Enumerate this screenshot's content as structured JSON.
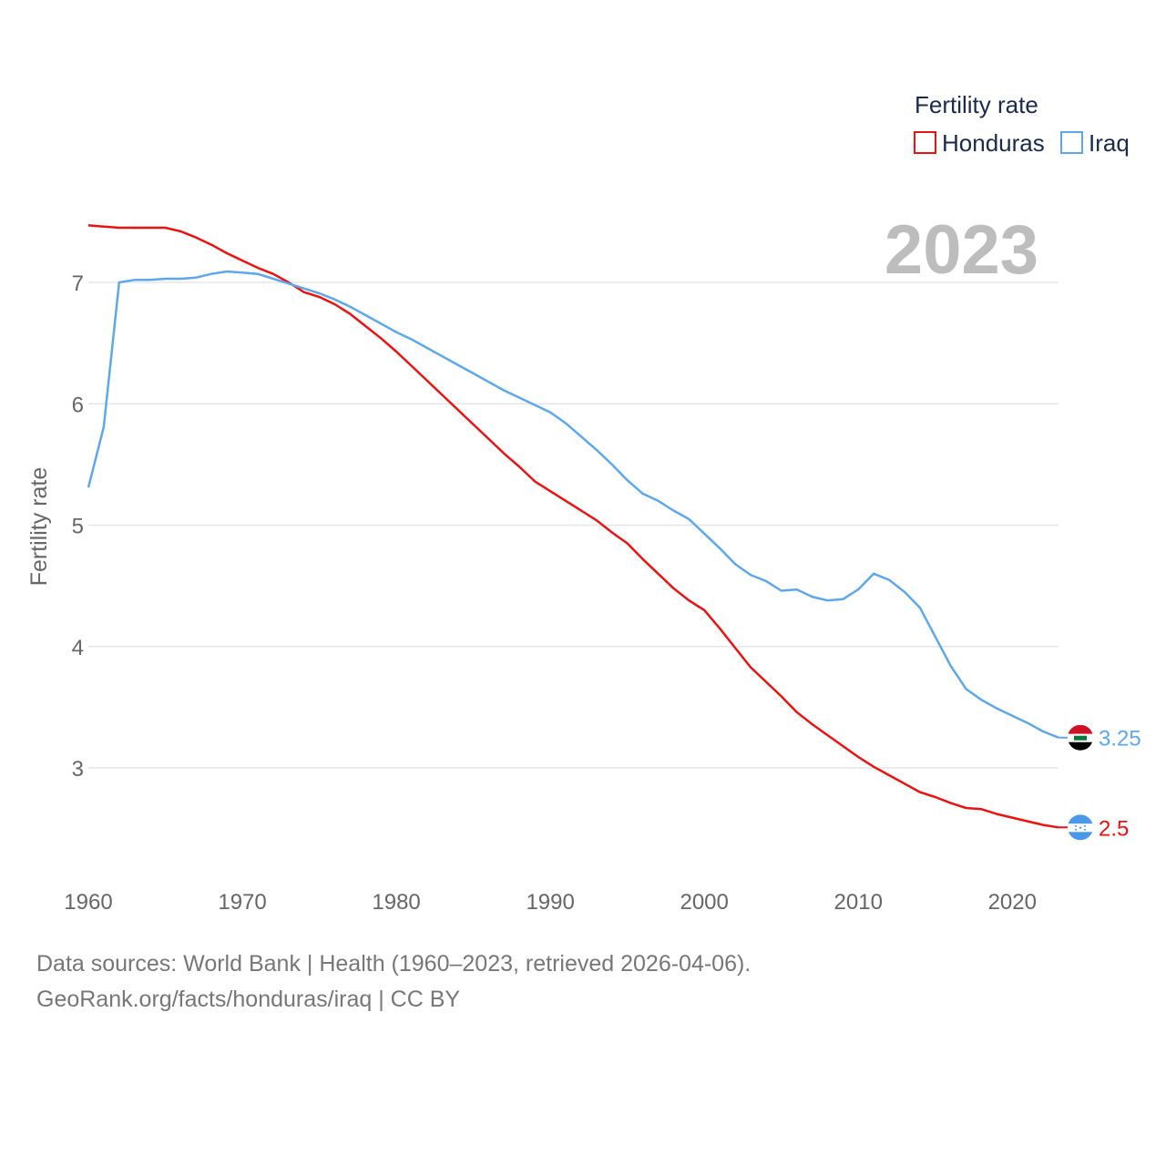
{
  "chart_data": {
    "type": "line",
    "title": "Fertility rate",
    "year_label": "2023",
    "ylabel": "Fertility rate",
    "xlabel": "",
    "xlim": [
      1960,
      2023
    ],
    "ylim": [
      2.2,
      7.5
    ],
    "x_ticks": [
      "1960",
      "1970",
      "1980",
      "1990",
      "2000",
      "2010",
      "2020"
    ],
    "y_ticks": [
      "3",
      "4",
      "5",
      "6",
      "7"
    ],
    "legend": [
      "Honduras",
      "Iraq"
    ],
    "series": [
      {
        "name": "Honduras",
        "color": "#ee1111",
        "end_label": "2.5",
        "flag": "honduras-flag",
        "x": [
          1960,
          1961,
          1962,
          1963,
          1964,
          1965,
          1966,
          1967,
          1968,
          1969,
          1970,
          1971,
          1972,
          1973,
          1974,
          1975,
          1976,
          1977,
          1978,
          1979,
          1980,
          1981,
          1982,
          1983,
          1984,
          1985,
          1986,
          1987,
          1988,
          1989,
          1990,
          1991,
          1992,
          1993,
          1994,
          1995,
          1996,
          1997,
          1998,
          1999,
          2000,
          2001,
          2002,
          2003,
          2004,
          2005,
          2006,
          2007,
          2008,
          2009,
          2010,
          2011,
          2012,
          2013,
          2014,
          2015,
          2016,
          2017,
          2018,
          2019,
          2020,
          2021,
          2022,
          2023
        ],
        "values": [
          7.47,
          7.46,
          7.45,
          7.45,
          7.45,
          7.45,
          7.42,
          7.37,
          7.31,
          7.24,
          7.18,
          7.12,
          7.07,
          7.0,
          6.92,
          6.88,
          6.82,
          6.74,
          6.64,
          6.54,
          6.43,
          6.31,
          6.19,
          6.07,
          5.95,
          5.83,
          5.71,
          5.59,
          5.48,
          5.36,
          5.28,
          5.2,
          5.12,
          5.04,
          4.94,
          4.85,
          4.72,
          4.6,
          4.48,
          4.38,
          4.3,
          4.15,
          3.99,
          3.83,
          3.71,
          3.59,
          3.46,
          3.36,
          3.27,
          3.18,
          3.09,
          3.01,
          2.94,
          2.87,
          2.8,
          2.76,
          2.71,
          2.67,
          2.66,
          2.62,
          2.59,
          2.56,
          2.53,
          2.51
        ]
      },
      {
        "name": "Iraq",
        "color": "#5da8ec",
        "end_label": "3.25",
        "flag": "iraq-flag",
        "x": [
          1960,
          1961,
          1962,
          1963,
          1964,
          1965,
          1966,
          1967,
          1968,
          1969,
          1970,
          1971,
          1972,
          1973,
          1974,
          1975,
          1976,
          1977,
          1978,
          1979,
          1980,
          1981,
          1982,
          1983,
          1984,
          1985,
          1986,
          1987,
          1988,
          1989,
          1990,
          1991,
          1992,
          1993,
          1994,
          1995,
          1996,
          1997,
          1998,
          1999,
          2000,
          2001,
          2002,
          2003,
          2004,
          2005,
          2006,
          2007,
          2008,
          2009,
          2010,
          2011,
          2012,
          2013,
          2014,
          2015,
          2016,
          2017,
          2018,
          2019,
          2020,
          2021,
          2022,
          2023
        ],
        "values": [
          5.31,
          5.81,
          7.0,
          7.02,
          7.02,
          7.03,
          7.03,
          7.04,
          7.07,
          7.09,
          7.08,
          7.07,
          7.03,
          6.99,
          6.95,
          6.91,
          6.86,
          6.8,
          6.73,
          6.66,
          6.59,
          6.53,
          6.46,
          6.39,
          6.32,
          6.25,
          6.18,
          6.11,
          6.05,
          5.99,
          5.93,
          5.84,
          5.73,
          5.62,
          5.5,
          5.37,
          5.26,
          5.2,
          5.12,
          5.05,
          4.93,
          4.81,
          4.68,
          4.59,
          4.54,
          4.46,
          4.47,
          4.41,
          4.38,
          4.39,
          4.47,
          4.6,
          4.55,
          4.45,
          4.32,
          4.08,
          3.84,
          3.65,
          3.56,
          3.49,
          3.43,
          3.37,
          3.3,
          3.25
        ]
      }
    ]
  },
  "footer": {
    "source_line": "Data sources: World Bank | Health (1960–2023, retrieved 2026-04-06).",
    "url_line": "GeoRank.org/facts/honduras/iraq | CC BY"
  }
}
